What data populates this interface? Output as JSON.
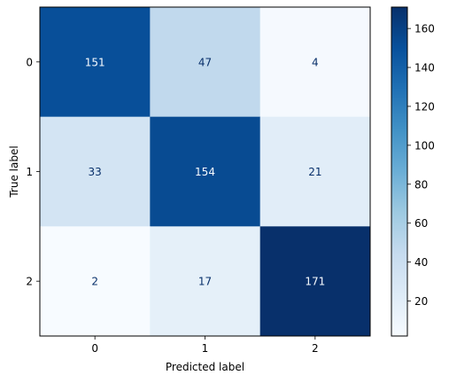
{
  "chart_data": {
    "type": "heatmap",
    "title": "",
    "xlabel": "Predicted label",
    "ylabel": "True label",
    "x_categories": [
      "0",
      "1",
      "2"
    ],
    "y_categories": [
      "0",
      "1",
      "2"
    ],
    "values": [
      [
        151,
        47,
        4
      ],
      [
        33,
        154,
        21
      ],
      [
        2,
        17,
        171
      ]
    ],
    "colormap": "Blues",
    "color_range": [
      2,
      171
    ],
    "colorbar_ticks": [
      20,
      40,
      60,
      80,
      100,
      120,
      140,
      160
    ],
    "grid": false,
    "annotation_colors": {
      "dark_text": "#08306b",
      "light_text": "#f7fbff"
    }
  }
}
